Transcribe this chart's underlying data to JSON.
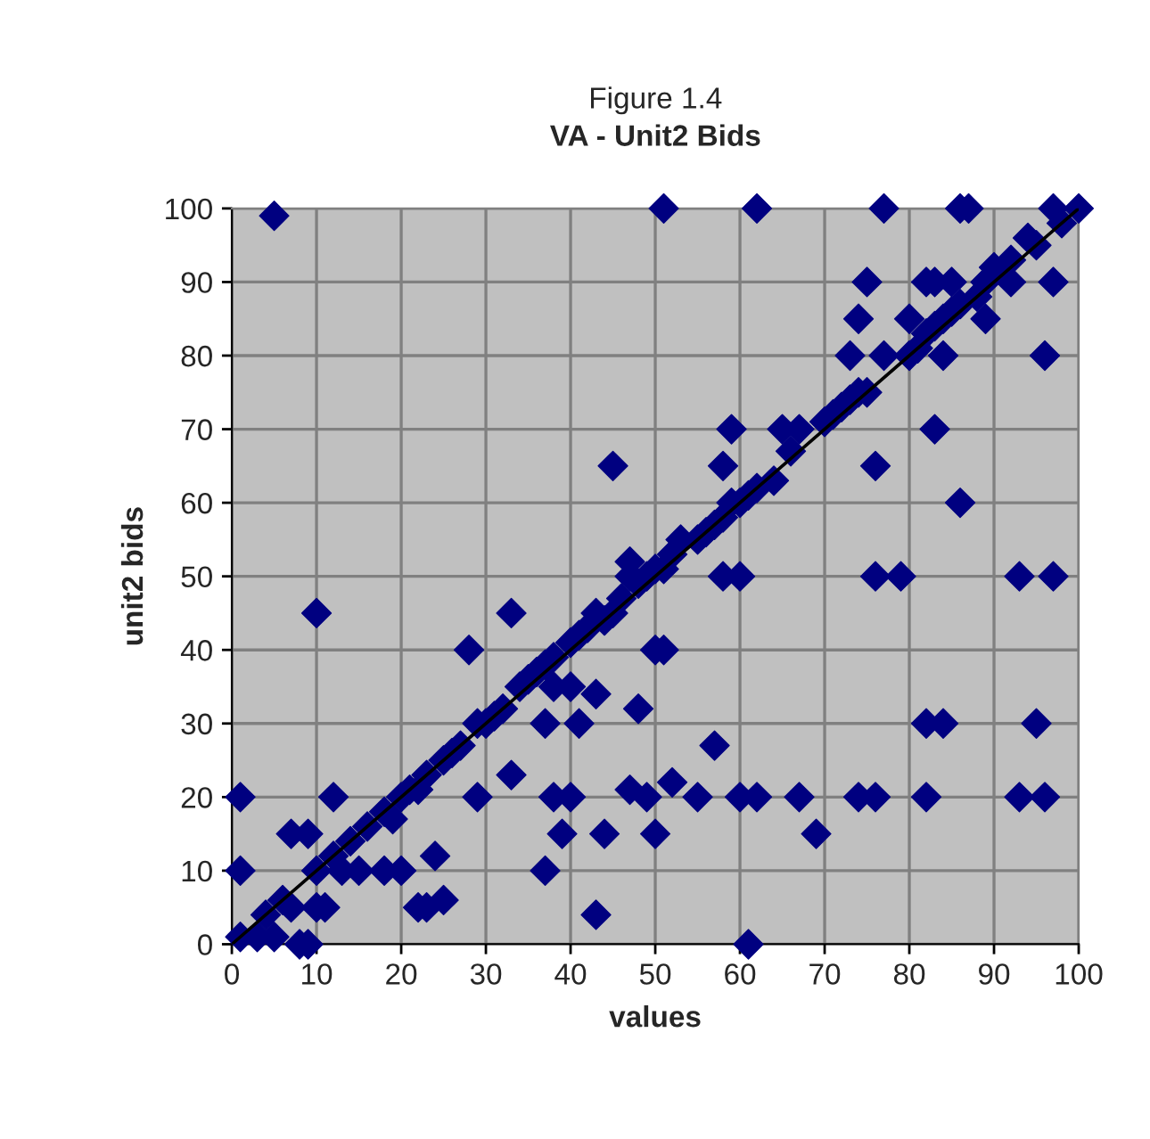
{
  "chart_data": {
    "type": "scatter",
    "title": "Figure 1.4",
    "subtitle": "VA - Unit2 Bids",
    "xlabel": "values",
    "ylabel": "unit2 bids",
    "xlim": [
      0,
      100
    ],
    "ylim": [
      0,
      100
    ],
    "xticks": [
      0,
      10,
      20,
      30,
      40,
      50,
      60,
      70,
      80,
      90,
      100
    ],
    "yticks": [
      0,
      10,
      20,
      30,
      40,
      50,
      60,
      70,
      80,
      90,
      100
    ],
    "grid": true,
    "marker": "diamond",
    "legend": false,
    "series": [
      {
        "color": "#000080",
        "x": [
          5,
          51,
          62,
          77,
          86,
          87,
          97,
          100,
          10,
          33,
          45,
          28,
          1,
          1,
          12,
          7,
          9,
          10,
          11,
          8,
          9,
          3,
          1,
          5,
          4,
          20,
          18,
          15,
          13,
          23,
          25,
          24,
          22,
          29,
          33,
          37,
          38,
          39,
          40,
          43,
          44,
          47,
          49,
          48,
          37,
          41,
          43,
          38,
          40,
          52,
          50,
          50,
          51,
          55,
          57,
          58,
          60,
          60,
          62,
          61,
          67,
          69,
          59,
          65,
          58,
          73,
          74,
          75,
          74,
          76,
          76,
          76,
          79,
          77,
          80,
          82,
          83,
          84,
          83,
          82,
          84,
          82,
          85,
          86,
          89,
          92,
          94,
          93,
          93,
          95,
          96,
          96,
          97,
          97,
          6,
          7,
          10,
          12,
          14,
          16,
          18,
          19,
          20,
          21,
          22,
          23,
          25,
          26,
          27,
          29,
          30,
          31,
          32,
          34,
          35,
          36,
          37,
          38,
          40,
          41,
          42,
          43,
          44,
          45,
          46,
          47,
          47,
          48,
          49,
          50,
          51,
          52,
          53,
          55,
          56,
          57,
          58,
          59,
          60,
          61,
          62,
          64,
          66,
          67,
          70,
          71,
          72,
          73,
          74,
          75,
          80,
          81,
          82,
          83,
          84,
          85,
          86,
          88,
          89,
          90,
          92,
          95,
          98
        ],
        "values": [
          99,
          100,
          100,
          100,
          100,
          100,
          100,
          100,
          45,
          45,
          65,
          40,
          20,
          10,
          20,
          15,
          15,
          5,
          5,
          0,
          0,
          1,
          1,
          1,
          4,
          10,
          10,
          10,
          10,
          5,
          6,
          12,
          5,
          20,
          23,
          10,
          20,
          15,
          20,
          4,
          15,
          21,
          20,
          32,
          30,
          30,
          34,
          35,
          35,
          22,
          15,
          40,
          40,
          20,
          27,
          50,
          50,
          20,
          20,
          0,
          20,
          15,
          70,
          70,
          65,
          80,
          85,
          90,
          20,
          20,
          65,
          50,
          50,
          80,
          85,
          90,
          90,
          80,
          70,
          30,
          30,
          20,
          90,
          60,
          85,
          90,
          96,
          50,
          20,
          30,
          80,
          20,
          90,
          50,
          6,
          5,
          10,
          12,
          14,
          16,
          18,
          17,
          20,
          21,
          21,
          23,
          25,
          26,
          27,
          30,
          30,
          31,
          32,
          35,
          36,
          37,
          38,
          39,
          41,
          42,
          43,
          45,
          44,
          45,
          47,
          50,
          52,
          49,
          50,
          51,
          51,
          53,
          55,
          55,
          56,
          57,
          58,
          60,
          60,
          61,
          62,
          63,
          67,
          70,
          71,
          72,
          73,
          74,
          75,
          75,
          80,
          81,
          83,
          84,
          85,
          86,
          87,
          88,
          90,
          92,
          93,
          95,
          98
        ]
      },
      {
        "type": "line",
        "color": "#000000",
        "x": [
          0,
          100
        ],
        "values": [
          0,
          100
        ],
        "marker": "none"
      }
    ]
  }
}
